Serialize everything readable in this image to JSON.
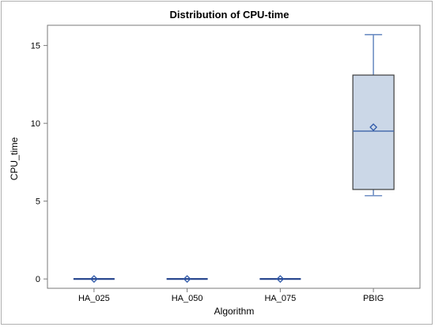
{
  "chart_data": {
    "type": "box",
    "title": "Distribution of CPU-time",
    "xlabel": "Algorithm",
    "ylabel": "CPU_time",
    "ylim": [
      -0.6,
      16.3
    ],
    "yticks": [
      0,
      5,
      10,
      15
    ],
    "ytick_labels": [
      "0",
      "5",
      "10",
      "15"
    ],
    "grid": false,
    "categories": [
      "HA_025",
      "HA_050",
      "HA_075",
      "PBIG"
    ],
    "boxes": [
      {
        "category": "HA_025",
        "min": 0,
        "q1": 0,
        "median": 0,
        "q3": 0,
        "max": 0,
        "mean": 0
      },
      {
        "category": "HA_050",
        "min": 0,
        "q1": 0,
        "median": 0,
        "q3": 0,
        "max": 0,
        "mean": 0
      },
      {
        "category": "HA_075",
        "min": 0,
        "q1": 0,
        "median": 0,
        "q3": 0,
        "max": 0,
        "mean": 0
      },
      {
        "category": "PBIG",
        "min": 5.35,
        "q1": 5.75,
        "median": 9.5,
        "q3": 13.1,
        "max": 15.7,
        "mean": 9.75
      }
    ],
    "colors": {
      "box_fill": "#cbd7e7",
      "box_edge": "#3d3d3d",
      "median_line": "#4a6fae",
      "whisker": "#6f8fc4",
      "mean_marker": "#2d57a8",
      "flat_box": "#1f3f8a",
      "axis": "#7a7a7a"
    }
  }
}
